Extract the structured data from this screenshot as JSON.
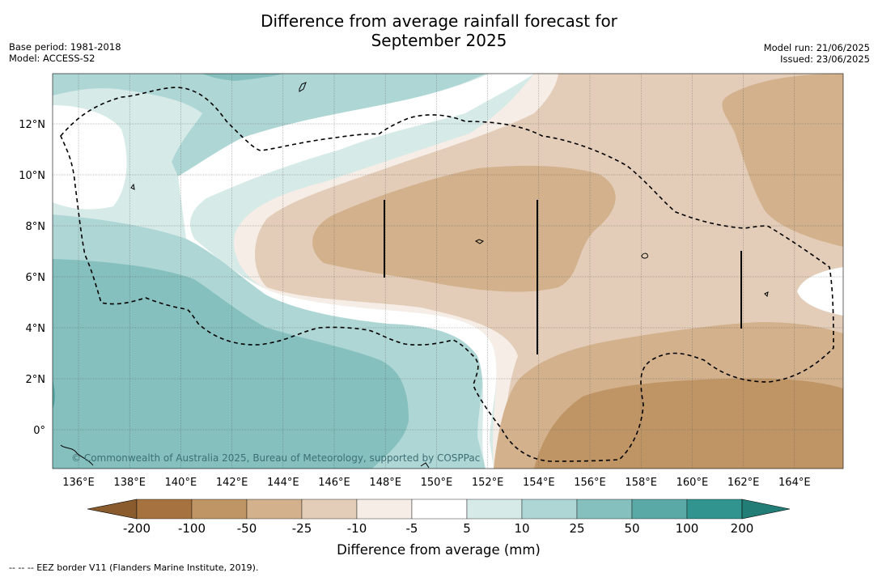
{
  "title_line1": "Difference from average rainfall forecast for",
  "title_line2": "September 2025",
  "meta_left": {
    "base_period": "Base period: 1981-2018",
    "model": "Model: ACCESS-S2"
  },
  "meta_right": {
    "model_run": "Model run: 21/06/2025",
    "issued": "Issued: 23/06/2025"
  },
  "map": {
    "lon_ticks": [
      "136°E",
      "138°E",
      "140°E",
      "142°E",
      "144°E",
      "146°E",
      "148°E",
      "150°E",
      "152°E",
      "154°E",
      "156°E",
      "158°E",
      "160°E",
      "162°E",
      "164°E"
    ],
    "lat_ticks": [
      "12°N",
      "10°N",
      "8°N",
      "6°N",
      "4°N",
      "2°N",
      "0°"
    ],
    "copyright": "© Commonwealth of Australia 2025, Bureau of Meteorology, supported by COSPPac",
    "colors": {
      "n200": "#a67340",
      "n100": "#bf9566",
      "n50": "#d2b18c",
      "n25": "#e3cdb8",
      "n10": "#f5ede6",
      "zero": "#ffffff",
      "p5": "#d6eae8",
      "p10": "#aed6d5",
      "p25": "#85c0bf",
      "p50": "#5aa9a6",
      "p100": "#31948f",
      "p200": "#1f7a75"
    }
  },
  "colorbar": {
    "title": "Difference from average (mm)",
    "labels": [
      "-200",
      "-100",
      "-50",
      "-25",
      "-10",
      "-5",
      "5",
      "10",
      "25",
      "50",
      "100",
      "200"
    ],
    "colors": [
      "#a67340",
      "#bf9566",
      "#d2b18c",
      "#e3cdb8",
      "#f5ede6",
      "#ffffff",
      "#d6eae8",
      "#aed6d5",
      "#85c0bf",
      "#5aa9a6",
      "#31948f"
    ],
    "extend_low_color": "#8a5b2c",
    "extend_high_color": "#227d77"
  },
  "footnote": "--  --  -- EEZ border V11 (Flanders Marine Institute, 2019)."
}
